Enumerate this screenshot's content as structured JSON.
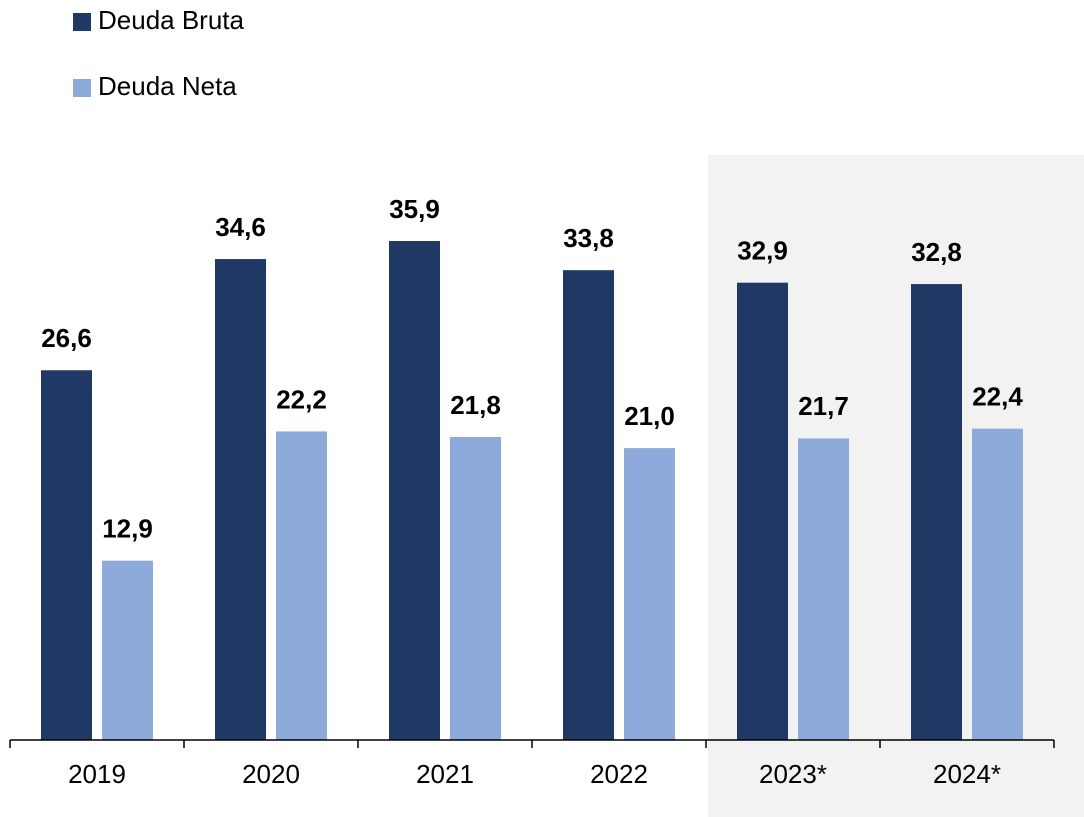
{
  "chart_data": {
    "type": "bar",
    "categories": [
      "2019",
      "2020",
      "2021",
      "2022",
      "2023*",
      "2024*"
    ],
    "series": [
      {
        "name": "Deuda Bruta",
        "color": "#203864",
        "values": [
          26.6,
          34.6,
          35.9,
          33.8,
          32.9,
          32.8
        ],
        "value_labels": [
          "26,6",
          "34,6",
          "35,9",
          "33,8",
          "32,9",
          "32,8"
        ]
      },
      {
        "name": "Deuda Neta",
        "color": "#8eaadb",
        "values": [
          12.9,
          22.2,
          21.8,
          21.0,
          21.7,
          22.4
        ],
        "value_labels": [
          "12,9",
          "22,2",
          "21,8",
          "21,0",
          "21,7",
          "22,4"
        ]
      }
    ],
    "ylim": [
      0,
      40
    ]
  }
}
